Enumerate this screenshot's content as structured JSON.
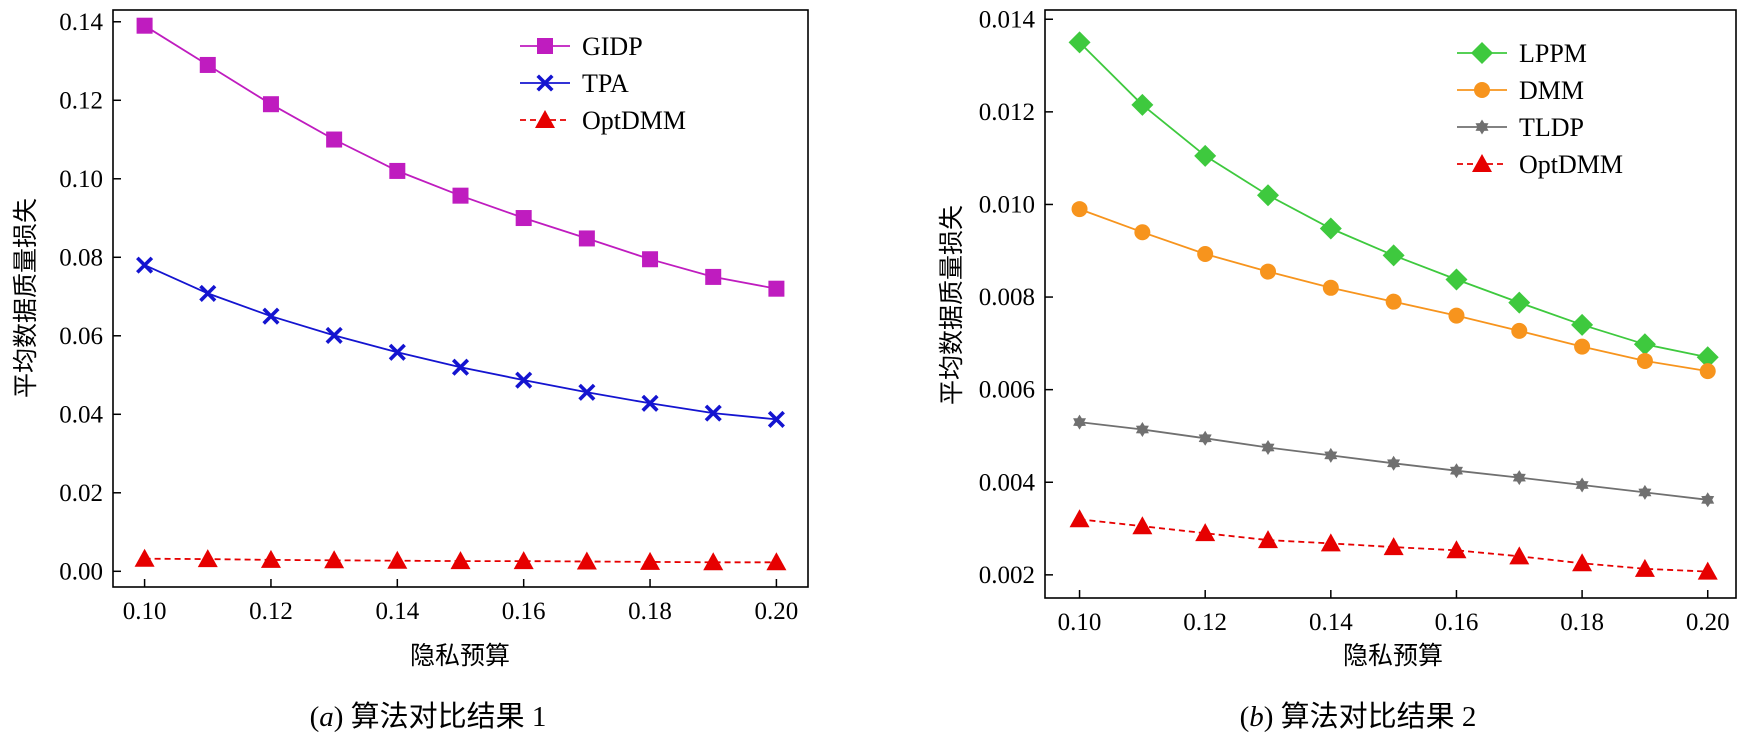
{
  "chart_data": [
    {
      "type": "line",
      "caption_letter": "a",
      "caption_text": "算法对比结果 1",
      "xlabel": "隐私预算",
      "ylabel": "平均数据质量损失",
      "xlim": [
        0.095,
        0.205
      ],
      "ylim": [
        -0.004,
        0.143
      ],
      "xticks": [
        "0.10",
        "0.12",
        "0.14",
        "0.16",
        "0.18",
        "0.20"
      ],
      "yticks": [
        "0.00",
        "0.02",
        "0.04",
        "0.06",
        "0.08",
        "0.10",
        "0.12",
        "0.14"
      ],
      "grid": false,
      "legend_position": "upper right",
      "x": [
        0.1,
        0.11,
        0.12,
        0.13,
        0.14,
        0.15,
        0.16,
        0.17,
        0.18,
        0.19,
        0.2
      ],
      "series": [
        {
          "name": "GIDP",
          "color": "#bf1cbf",
          "marker": "square",
          "dash": "solid",
          "values": [
            0.139,
            0.129,
            0.119,
            0.11,
            0.102,
            0.0957,
            0.09,
            0.0848,
            0.0795,
            0.075,
            0.072
          ]
        },
        {
          "name": "TPA",
          "color": "#1414d0",
          "marker": "x",
          "dash": "solid",
          "values": [
            0.078,
            0.0708,
            0.065,
            0.0601,
            0.0558,
            0.052,
            0.0487,
            0.0456,
            0.0428,
            0.0403,
            0.0387
          ]
        },
        {
          "name": "OptDMM",
          "color": "#e60000",
          "marker": "triangle",
          "dash": "dashed",
          "values": [
            0.0032,
            0.0031,
            0.0029,
            0.0028,
            0.0027,
            0.0026,
            0.0026,
            0.0025,
            0.0024,
            0.0023,
            0.0023
          ]
        }
      ]
    },
    {
      "type": "line",
      "caption_letter": "b",
      "caption_text": "算法对比结果 2",
      "xlabel": "隐私预算",
      "ylabel": "平均数据质量损失",
      "xlim": [
        0.0945,
        0.2045
      ],
      "ylim": [
        0.0015,
        0.0142
      ],
      "xticks": [
        "0.10",
        "0.12",
        "0.14",
        "0.16",
        "0.18",
        "0.20"
      ],
      "yticks": [
        "0.002",
        "0.004",
        "0.006",
        "0.008",
        "0.010",
        "0.012",
        "0.014"
      ],
      "grid": false,
      "legend_position": "upper right",
      "x": [
        0.1,
        0.11,
        0.12,
        0.13,
        0.14,
        0.15,
        0.16,
        0.17,
        0.18,
        0.19,
        0.2
      ],
      "series": [
        {
          "name": "LPPM",
          "color": "#3ec93e",
          "marker": "diamond",
          "dash": "solid",
          "values": [
            0.0135,
            0.01215,
            0.01105,
            0.0102,
            0.00948,
            0.0089,
            0.00838,
            0.00788,
            0.0074,
            0.00698,
            0.0067
          ]
        },
        {
          "name": "DMM",
          "color": "#f7941d",
          "marker": "circle",
          "dash": "solid",
          "values": [
            0.0099,
            0.0094,
            0.00893,
            0.00855,
            0.0082,
            0.0079,
            0.0076,
            0.00727,
            0.00693,
            0.00662,
            0.0064
          ]
        },
        {
          "name": "TLDP",
          "color": "#707070",
          "marker": "star",
          "dash": "solid",
          "values": [
            0.0053,
            0.00514,
            0.00495,
            0.00475,
            0.00458,
            0.00441,
            0.00425,
            0.0041,
            0.00394,
            0.00378,
            0.00362
          ]
        },
        {
          "name": "OptDMM",
          "color": "#e60000",
          "marker": "triangle",
          "dash": "dashed",
          "values": [
            0.0032,
            0.00305,
            0.0029,
            0.00275,
            0.00268,
            0.0026,
            0.00253,
            0.0024,
            0.00225,
            0.00213,
            0.00207
          ]
        }
      ]
    }
  ]
}
